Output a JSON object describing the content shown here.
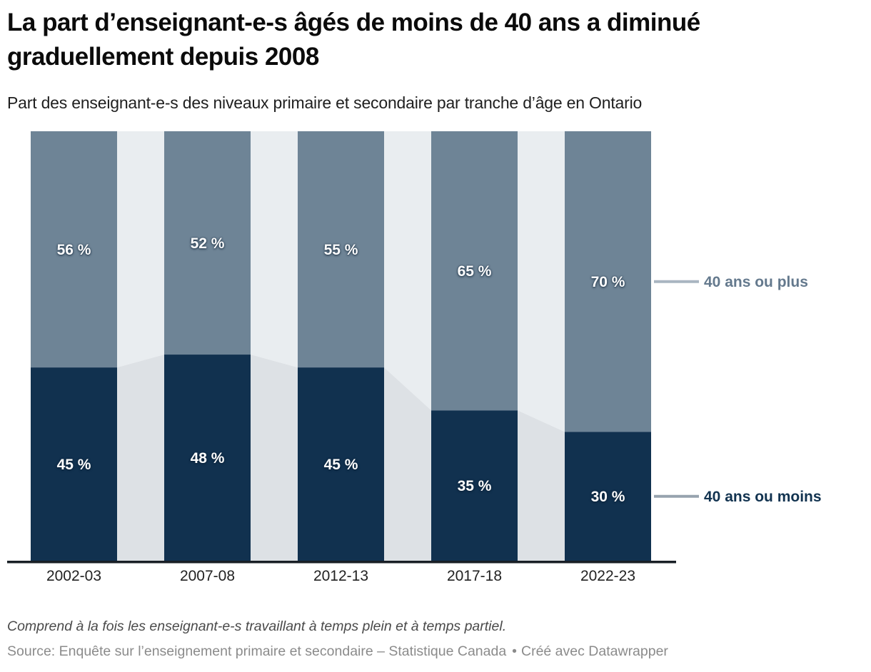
{
  "header": {
    "title": "La part d’enseignant-e-s âgés de moins de 40 ans a diminué graduellement depuis 2008",
    "subtitle": "Part des enseignant-e-s des niveaux primaire et secondaire par tranche d’âge en Ontario"
  },
  "chart_data": {
    "type": "bar",
    "variant": "stacked-100-columns-with-area-connectors",
    "title": "La part d’enseignant-e-s âgés de moins de 40 ans a diminué graduellement depuis 2008",
    "subtitle": "Part des enseignant-e-s des niveaux primaire et secondaire par tranche d’âge en Ontario",
    "categories": [
      "2002-03",
      "2007-08",
      "2012-13",
      "2017-18",
      "2022-23"
    ],
    "series": [
      {
        "name": "40 ans ou moins",
        "values": [
          45,
          48,
          45,
          35,
          30
        ],
        "value_labels": [
          "45 %",
          "48 %",
          "45 %",
          "35 %",
          "30 %"
        ],
        "color": "#11314f",
        "connector_color": "#dde1e5",
        "legend_text_color": "#123350",
        "legend_line_color": "#97a3ae"
      },
      {
        "name": "40 ans ou plus",
        "values": [
          56,
          52,
          55,
          65,
          70
        ],
        "value_labels": [
          "56 %",
          "52 %",
          "55 %",
          "65 %",
          "70 %"
        ],
        "color": "#6e8496",
        "connector_color": "#e9edf0",
        "legend_text_color": "#64798d",
        "legend_line_color": "#a9b5c1"
      }
    ],
    "ylim": [
      0,
      100
    ],
    "grid": false,
    "legend_position": "right",
    "axis_line_color": "#191f26",
    "tick_label_color": "#222222",
    "value_label_color": "#ffffff"
  },
  "footer": {
    "note": "Comprend à la fois les enseignant-e-s travaillant à temps plein et à temps partiel.",
    "source": "Source: Enquête sur l’enseignement primaire et secondaire – Statistique Canada",
    "separator": "•",
    "attribution": "Créé avec Datawrapper"
  }
}
